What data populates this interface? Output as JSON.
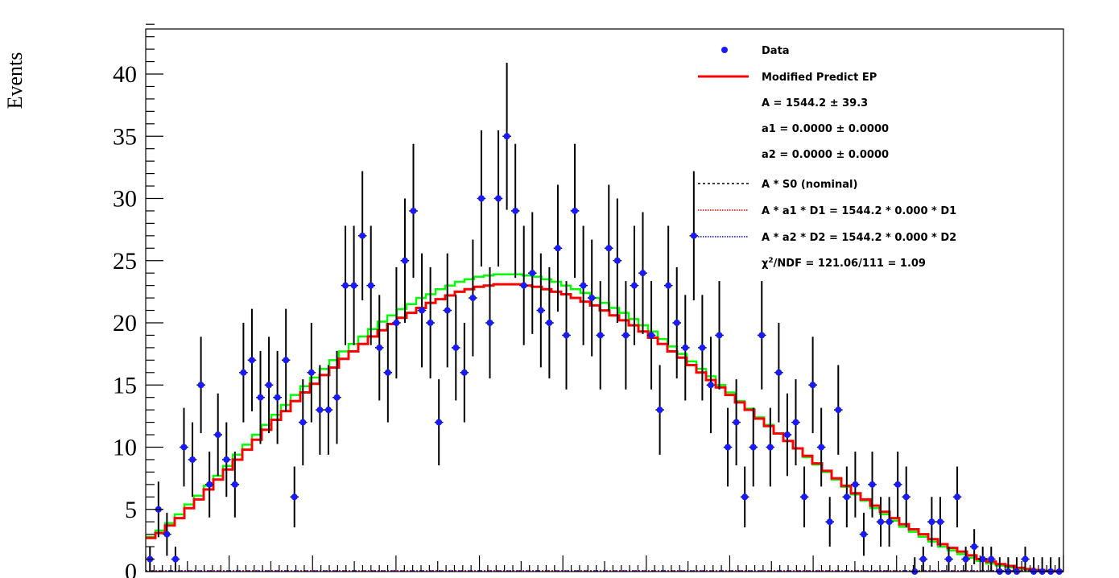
{
  "chart_data": {
    "type": "scatter",
    "title": "",
    "xlabel": "",
    "ylabel": "Events",
    "ylim": [
      0,
      44
    ],
    "yticks": [
      "0",
      "5",
      "10",
      "15",
      "20",
      "25",
      "30",
      "35",
      "40"
    ],
    "grid": false,
    "legend_position": "top-right",
    "colors": {
      "data": "#1a1aff",
      "modified": "#ff0000",
      "green": "#00ff00",
      "nominal": "#000000",
      "d1": "#ff0000",
      "d2": "#0000ff"
    },
    "legend": {
      "data": "Data",
      "modified": "Modified Predict EP",
      "param_A": "A = 1544.2 ± 39.3",
      "param_a1": "a1 = 0.0000 ± 0.0000",
      "param_a2": "a2 = 0.0000 ± 0.0000",
      "nominal": "A * S0 (nominal)",
      "d1": "A * a1 * D1 = 1544.2 * 0.000 * D1",
      "d2": "A * a2 * D2 = 1544.2 * 0.000 * D2",
      "chi2_prefix": "χ",
      "chi2_sup": "2",
      "chi2_rest": "/NDF = 121.06/111 = 1.09"
    },
    "series": [
      {
        "name": "Data",
        "values": [
          1,
          5,
          3,
          1,
          10,
          9,
          15,
          7,
          11,
          9,
          7,
          16,
          17,
          14,
          15,
          14,
          17,
          6,
          12,
          16,
          13,
          13,
          14,
          23,
          23,
          27,
          23,
          18,
          16,
          20,
          25,
          29,
          21,
          20,
          12,
          21,
          18,
          16,
          22,
          30,
          20,
          30,
          35,
          29,
          23,
          24,
          21,
          20,
          26,
          19,
          29,
          23,
          22,
          19,
          26,
          25,
          19,
          23,
          24,
          19,
          13,
          23,
          20,
          18,
          27,
          18,
          15,
          19,
          10,
          12,
          6,
          10,
          19,
          10,
          16,
          11,
          12,
          6,
          15,
          10,
          4,
          13,
          6,
          7,
          3,
          7,
          4,
          4,
          7,
          6,
          0,
          1,
          4,
          4,
          1,
          6,
          1,
          2,
          1,
          1,
          0,
          0,
          0,
          1,
          0,
          0,
          0,
          0
        ]
      },
      {
        "name": "Modified Predict EP",
        "values": [
          2.7,
          3.1,
          3.7,
          4.3,
          5.1,
          5.8,
          6.6,
          7.4,
          8.2,
          9.0,
          9.8,
          10.6,
          11.4,
          12.2,
          12.9,
          13.7,
          14.4,
          15.1,
          15.8,
          16.4,
          17.1,
          17.7,
          18.3,
          18.9,
          19.4,
          19.9,
          20.4,
          20.8,
          21.2,
          21.6,
          21.9,
          22.2,
          22.5,
          22.7,
          22.9,
          23.0,
          23.1,
          23.1,
          23.1,
          23.0,
          22.9,
          22.7,
          22.5,
          22.3,
          22.0,
          21.7,
          21.4,
          21.0,
          20.6,
          20.2,
          19.8,
          19.3,
          18.8,
          18.3,
          17.7,
          17.2,
          16.6,
          16.0,
          15.4,
          14.8,
          14.2,
          13.6,
          13.0,
          12.3,
          11.7,
          11.1,
          10.5,
          9.9,
          9.3,
          8.7,
          8.1,
          7.5,
          6.9,
          6.3,
          5.8,
          5.3,
          4.8,
          4.3,
          3.8,
          3.4,
          3.0,
          2.6,
          2.2,
          1.9,
          1.6,
          1.3,
          1.0,
          0.8,
          0.6,
          0.45,
          0.3,
          0.2,
          0.12,
          0.06,
          0.02
        ]
      },
      {
        "name": "",
        "values": [
          2.8,
          3.3,
          3.9,
          4.6,
          5.4,
          6.1,
          6.9,
          7.7,
          8.5,
          9.4,
          10.2,
          11.0,
          11.8,
          12.6,
          13.4,
          14.2,
          14.9,
          15.6,
          16.3,
          17.0,
          17.7,
          18.3,
          18.9,
          19.5,
          20.1,
          20.6,
          21.1,
          21.5,
          22.0,
          22.3,
          22.7,
          23.0,
          23.3,
          23.5,
          23.7,
          23.8,
          23.9,
          23.9,
          23.9,
          23.8,
          23.7,
          23.5,
          23.3,
          23.0,
          22.7,
          22.4,
          22.0,
          21.6,
          21.2,
          20.8,
          20.3,
          19.8,
          19.3,
          18.7,
          18.1,
          17.5,
          16.9,
          16.3,
          15.7,
          15.0,
          14.4,
          13.7,
          13.1,
          12.4,
          11.8,
          11.1,
          10.5,
          9.9,
          9.2,
          8.6,
          8.0,
          7.4,
          6.8,
          6.2,
          5.7,
          5.1,
          4.6,
          4.1,
          3.6,
          3.2,
          2.8,
          2.4,
          2.0,
          1.7,
          1.4,
          1.1,
          0.85,
          0.65,
          0.48,
          0.34,
          0.22,
          0.13,
          0.07,
          0.03,
          0.01
        ]
      },
      {
        "name": "A * S0 (nominal)",
        "values": [
          0
        ]
      },
      {
        "name": "A * a1 * D1 = 1544.2 * 0.000 * D1",
        "values": [
          0
        ]
      },
      {
        "name": "A * a2 * D2 = 1544.2 * 0.000 * D2",
        "values": [
          0
        ]
      }
    ]
  }
}
